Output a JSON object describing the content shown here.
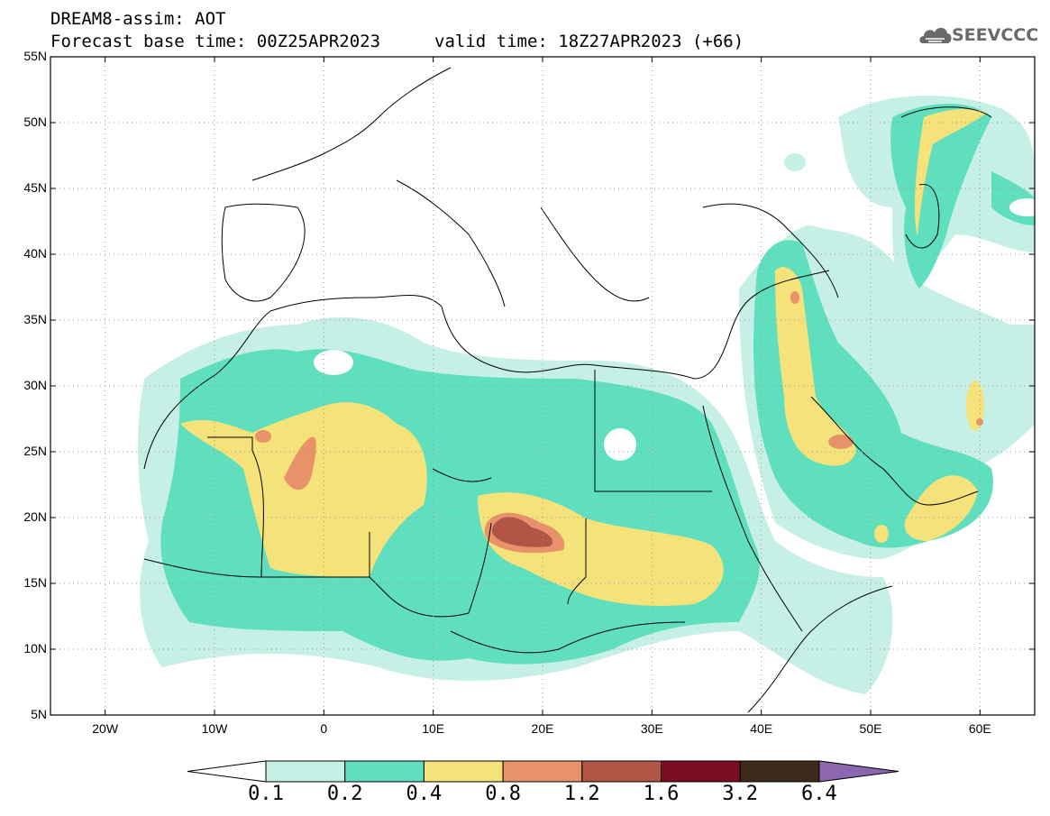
{
  "title": {
    "line1": "DREAM8-assim: AOT",
    "line2": "Forecast base time: 00Z25APR2023",
    "line3": "valid time: 18Z27APR2023 (+66)"
  },
  "logo": {
    "text": "SEEVCCC",
    "icon": "cloud-icon"
  },
  "map": {
    "lon_range": [
      -25,
      65
    ],
    "lat_range": [
      5,
      55
    ],
    "lat_ticks": [
      "55N",
      "50N",
      "45N",
      "40N",
      "35N",
      "30N",
      "25N",
      "20N",
      "15N",
      "10N",
      "5N"
    ],
    "lon_ticks": [
      "20W",
      "10W",
      "0",
      "10E",
      "20E",
      "30E",
      "40E",
      "50E",
      "60E"
    ],
    "grid": "dotted"
  },
  "colorbar": {
    "labels": [
      "0.1",
      "0.2",
      "0.4",
      "0.8",
      "1.2",
      "1.6",
      "3.2",
      "6.4"
    ],
    "colors": [
      "#ffffff",
      "#c6f0e6",
      "#5fdfbd",
      "#f5e27a",
      "#e8926a",
      "#b25446",
      "#7a0e22",
      "#3e2a1a",
      "#8a67ae"
    ]
  }
}
